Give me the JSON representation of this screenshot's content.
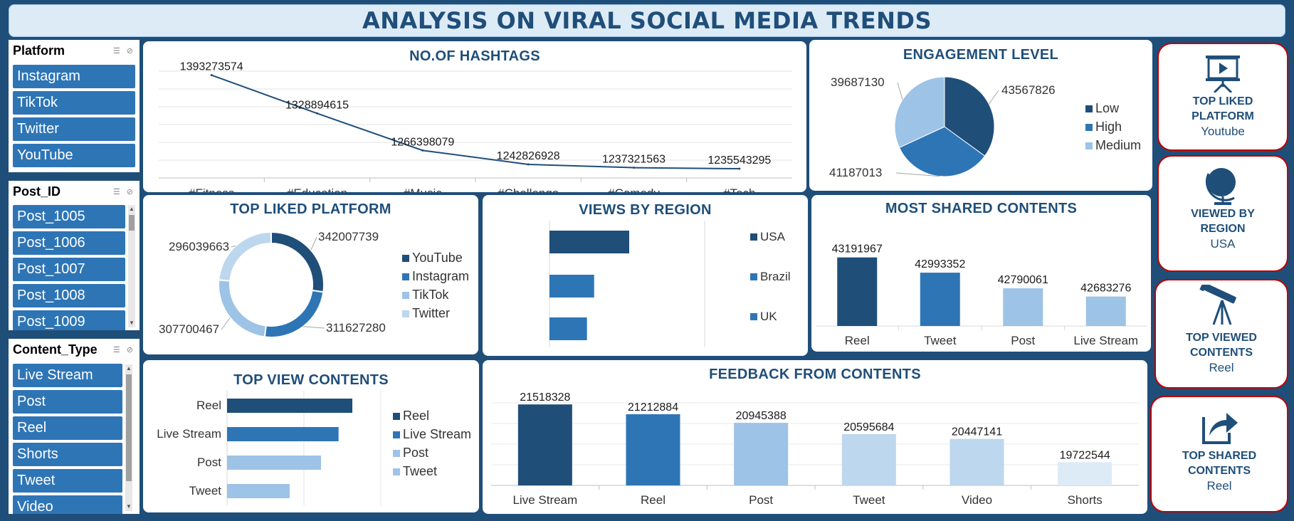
{
  "title": "ANALYSIS ON VIRAL SOCIAL MEDIA TRENDS",
  "slicers": {
    "platform": {
      "title": "Platform",
      "items": [
        "Instagram",
        "TikTok",
        "Twitter",
        "YouTube"
      ]
    },
    "post_id": {
      "title": "Post_ID",
      "items": [
        "Post_1005",
        "Post_1006",
        "Post_1007",
        "Post_1008",
        "Post_1009"
      ]
    },
    "content_type": {
      "title": "Content_Type",
      "items": [
        "Live Stream",
        "Post",
        "Reel",
        "Shorts",
        "Tweet",
        "Video"
      ]
    }
  },
  "kpis": [
    {
      "label1": "TOP LIKED",
      "label2": "PLATFORM",
      "value": "Youtube",
      "icon": "presentation-icon"
    },
    {
      "label1": "VIEWED BY",
      "label2": "REGION",
      "value": "USA",
      "icon": "globe-icon"
    },
    {
      "label1": "TOP VIEWED",
      "label2": "CONTENTS",
      "value": "Reel",
      "icon": "telescope-icon"
    },
    {
      "label1": "TOP SHARED",
      "label2": "CONTENTS",
      "value": "Reel",
      "icon": "share-icon"
    }
  ],
  "chart_data": [
    {
      "id": "hashtags",
      "type": "line",
      "title": "NO.OF HASHTAGS",
      "categories": [
        "#Fitness",
        "#Education",
        "#Music",
        "#Challenge",
        "#Comedy",
        "#Tech"
      ],
      "values": [
        1393273574,
        1328894615,
        1266398079,
        1242826928,
        1237321563,
        1235543295
      ],
      "color": "#1F4E79",
      "grid": true
    },
    {
      "id": "engagement",
      "type": "pie",
      "title": "ENGAGEMENT LEVEL",
      "categories": [
        "Low",
        "High",
        "Medium"
      ],
      "values": [
        43567826,
        41187013,
        39687130
      ],
      "colors": [
        "#1F4E79",
        "#2E75B6",
        "#9DC3E6"
      ],
      "legend": "right"
    },
    {
      "id": "top_liked",
      "type": "pie",
      "title": "TOP LIKED PLATFORM",
      "categories": [
        "YouTube",
        "Instagram",
        "TikTok",
        "Twitter"
      ],
      "values": [
        342007739,
        311627280,
        307700467,
        296039663
      ],
      "colors": [
        "#1F4E79",
        "#2E75B6",
        "#9DC3E6",
        "#BDD7EE"
      ],
      "legend": "right"
    },
    {
      "id": "views_region",
      "type": "bar",
      "title": "VIEWS BY REGION",
      "categories": [
        "USA",
        "Brazil",
        "UK"
      ],
      "values": [
        100,
        56,
        47
      ],
      "colors": [
        "#1F4E79",
        "#2E75B6",
        "#2E75B6"
      ],
      "legend": "right"
    },
    {
      "id": "most_shared",
      "type": "bar",
      "title": "MOST SHARED CONTENTS",
      "categories": [
        "Reel",
        "Tweet",
        "Post",
        "Live Stream"
      ],
      "values": [
        43191967,
        42993352,
        42790061,
        42683276
      ],
      "colors": [
        "#1F4E79",
        "#2E75B6",
        "#9DC3E6",
        "#9DC3E6"
      ]
    },
    {
      "id": "top_view",
      "type": "bar",
      "title": "TOP VIEW CONTENTS",
      "categories": [
        "Reel",
        "Live Stream",
        "Post",
        "Tweet"
      ],
      "values": [
        100,
        89,
        75,
        50
      ],
      "colors": [
        "#1F4E79",
        "#2E75B6",
        "#9DC3E6",
        "#9DC3E6"
      ],
      "legend": "right"
    },
    {
      "id": "feedback",
      "type": "bar",
      "title": "FEEDBACK FROM CONTENTS",
      "categories": [
        "Live Stream",
        "Reel",
        "Post",
        "Tweet",
        "Video",
        "Shorts"
      ],
      "values": [
        21518328,
        21212884,
        20945388,
        20595684,
        20447141,
        19722544
      ],
      "colors": [
        "#1F4E79",
        "#2E75B6",
        "#9DC3E6",
        "#BDD7EE",
        "#BDD7EE",
        "#DDEBF7"
      ],
      "grid": true
    }
  ]
}
